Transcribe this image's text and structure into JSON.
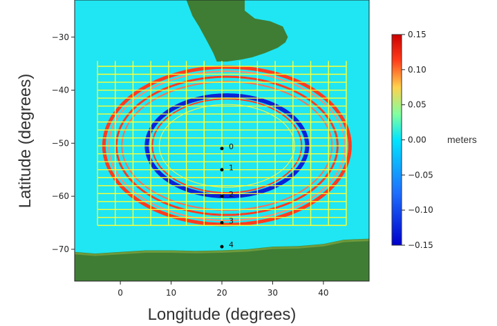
{
  "chart_data": {
    "type": "heatmap",
    "xlabel": "Longitude (degrees)",
    "ylabel": "Latitude (degrees)",
    "xlim": [
      -9,
      49
    ],
    "ylim": [
      -76,
      -23
    ],
    "x_ticks": [
      0,
      10,
      20,
      30,
      40
    ],
    "y_ticks": [
      -30,
      -40,
      -50,
      -60,
      -70
    ],
    "colorbar": {
      "min": -0.15,
      "max": 0.15,
      "ticks": [
        "0.15",
        "0.10",
        "0.05",
        "0.00",
        "−0.05",
        "−0.10",
        "−0.15"
      ],
      "tick_values": [
        0.15,
        0.1,
        0.05,
        0.0,
        -0.05,
        -0.1,
        -0.15
      ],
      "label": "meters",
      "colors": [
        "#0000cc",
        "#1e6fff",
        "#00e5ff",
        "#ffd24d",
        "#ff3a1a",
        "#cc0000"
      ]
    },
    "grid_box": {
      "lon_range": [
        -4.5,
        44.5
      ],
      "lat_range": [
        -65.5,
        -34.5
      ],
      "lon_step": 3.5,
      "lat_step": 1.5,
      "color": "#ffff33"
    },
    "stations": [
      {
        "label": "0",
        "lon": 20,
        "lat": -51
      },
      {
        "label": "1",
        "lon": 20,
        "lat": -55
      },
      {
        "label": "2",
        "lon": 20,
        "lat": -60
      },
      {
        "label": "3",
        "lon": 20,
        "lat": -65
      },
      {
        "label": "4",
        "lon": 20,
        "lat": -69.5
      }
    ],
    "colors": {
      "ocean": "#1fe6f2",
      "land": "#3f7d34",
      "land_light": "#6e9a3c",
      "outer_ring": "#ff3b1f",
      "inner_ring": "#0a23d6",
      "grid": "#ffff33"
    }
  }
}
